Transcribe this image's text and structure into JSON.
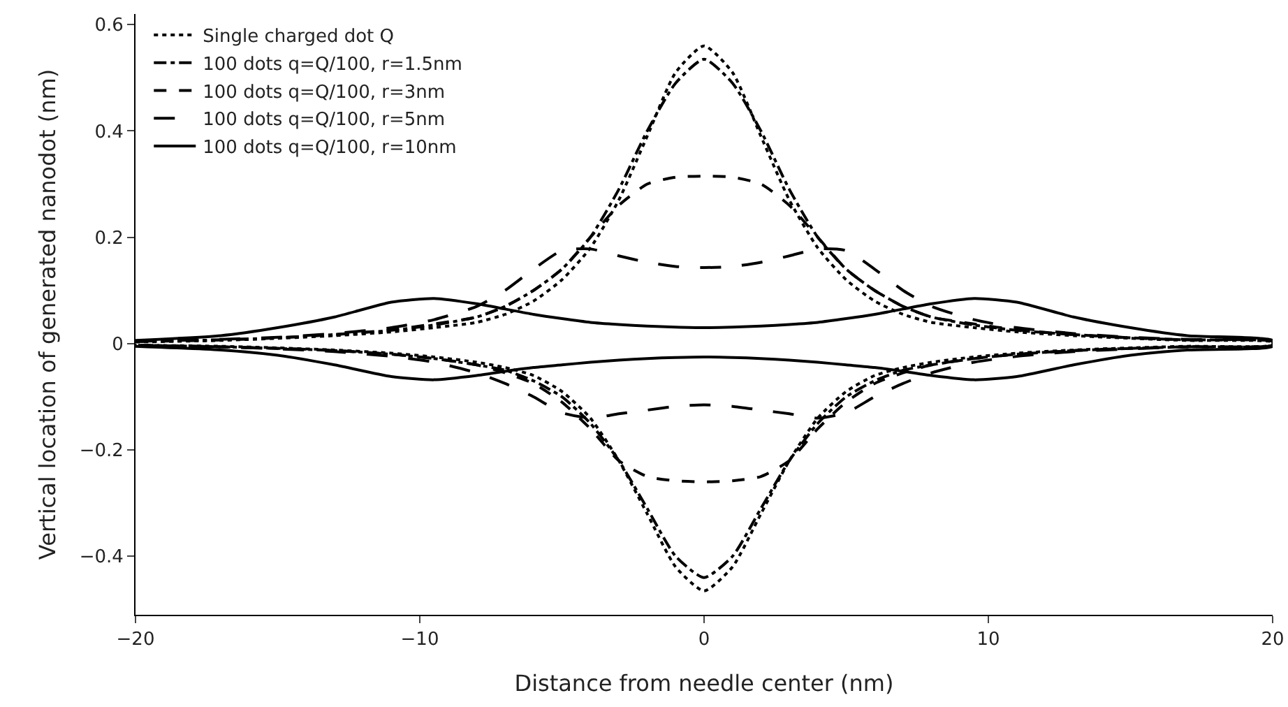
{
  "chart_data": {
    "type": "line",
    "xlabel": "Distance from needle center (nm)",
    "ylabel": "Vertical location of generated nanodot (nm)",
    "x": [
      -20,
      -17,
      -15,
      -13,
      -11,
      -9.5,
      -8,
      -7,
      -6,
      -5,
      -4,
      -3,
      -2,
      -1,
      0,
      1,
      2,
      3,
      4,
      5,
      6,
      7,
      8,
      9.5,
      11,
      13,
      15,
      17,
      20,
      20,
      17,
      15,
      13,
      11,
      9.5,
      8,
      7,
      6,
      5,
      4,
      3,
      2,
      1,
      0,
      -1,
      -2,
      -3,
      -4,
      -5,
      -6,
      -7,
      -8,
      -9.5,
      -11,
      -13,
      -15,
      -17,
      -20
    ],
    "series": [
      {
        "name": "Single charged dot Q",
        "color": "#000000",
        "line_style": "dotted",
        "values": [
          0.003,
          0.006,
          0.01,
          0.015,
          0.022,
          0.03,
          0.04,
          0.055,
          0.08,
          0.12,
          0.18,
          0.27,
          0.39,
          0.51,
          0.56,
          0.51,
          0.39,
          0.27,
          0.18,
          0.12,
          0.08,
          0.055,
          0.04,
          0.03,
          0.022,
          0.015,
          0.01,
          0.006,
          0.003,
          -0.003,
          -0.005,
          -0.008,
          -0.012,
          -0.018,
          -0.025,
          -0.035,
          -0.045,
          -0.06,
          -0.09,
          -0.14,
          -0.22,
          -0.32,
          -0.42,
          -0.465,
          -0.42,
          -0.32,
          -0.22,
          -0.14,
          -0.09,
          -0.06,
          -0.045,
          -0.035,
          -0.025,
          -0.018,
          -0.012,
          -0.008,
          -0.005,
          -0.003
        ]
      },
      {
        "name": "100 dots q=Q/100, r=1.5nm",
        "color": "#000000",
        "line_style": "dashdot",
        "values": [
          0.004,
          0.007,
          0.011,
          0.017,
          0.025,
          0.035,
          0.05,
          0.07,
          0.1,
          0.14,
          0.2,
          0.29,
          0.4,
          0.49,
          0.535,
          0.49,
          0.4,
          0.29,
          0.2,
          0.14,
          0.1,
          0.07,
          0.05,
          0.035,
          0.025,
          0.017,
          0.011,
          0.007,
          0.004,
          -0.003,
          -0.006,
          -0.009,
          -0.013,
          -0.02,
          -0.028,
          -0.04,
          -0.05,
          -0.07,
          -0.1,
          -0.15,
          -0.22,
          -0.31,
          -0.4,
          -0.44,
          -0.4,
          -0.31,
          -0.22,
          -0.15,
          -0.1,
          -0.07,
          -0.05,
          -0.04,
          -0.028,
          -0.02,
          -0.013,
          -0.009,
          -0.006,
          -0.003
        ]
      },
      {
        "name": "100 dots q=Q/100, r=3nm",
        "color": "#000000",
        "line_style": "dashed",
        "values": [
          0.004,
          0.007,
          0.011,
          0.017,
          0.026,
          0.037,
          0.05,
          0.07,
          0.1,
          0.14,
          0.2,
          0.26,
          0.3,
          0.313,
          0.315,
          0.313,
          0.3,
          0.26,
          0.2,
          0.14,
          0.1,
          0.07,
          0.05,
          0.037,
          0.026,
          0.017,
          0.011,
          0.007,
          0.004,
          -0.003,
          -0.006,
          -0.009,
          -0.013,
          -0.02,
          -0.028,
          -0.04,
          -0.055,
          -0.075,
          -0.11,
          -0.16,
          -0.22,
          -0.25,
          -0.258,
          -0.26,
          -0.258,
          -0.25,
          -0.22,
          -0.16,
          -0.11,
          -0.075,
          -0.055,
          -0.04,
          -0.028,
          -0.02,
          -0.013,
          -0.009,
          -0.006,
          -0.003
        ]
      },
      {
        "name": "100 dots q=Q/100, r=5nm",
        "color": "#000000",
        "line_style": "longdash",
        "values": [
          0.004,
          0.008,
          0.012,
          0.019,
          0.03,
          0.045,
          0.07,
          0.1,
          0.14,
          0.175,
          0.178,
          0.165,
          0.153,
          0.145,
          0.143,
          0.145,
          0.153,
          0.165,
          0.178,
          0.175,
          0.14,
          0.1,
          0.07,
          0.045,
          0.03,
          0.019,
          0.012,
          0.008,
          0.004,
          -0.003,
          -0.006,
          -0.01,
          -0.015,
          -0.024,
          -0.035,
          -0.055,
          -0.075,
          -0.1,
          -0.13,
          -0.14,
          -0.132,
          -0.125,
          -0.118,
          -0.115,
          -0.118,
          -0.125,
          -0.132,
          -0.14,
          -0.13,
          -0.1,
          -0.075,
          -0.055,
          -0.035,
          -0.024,
          -0.015,
          -0.01,
          -0.006,
          -0.003
        ]
      },
      {
        "name": "100 dots q=Q/100, r=10nm",
        "color": "#000000",
        "line_style": "solid",
        "values": [
          0.006,
          0.015,
          0.03,
          0.05,
          0.078,
          0.085,
          0.075,
          0.065,
          0.055,
          0.047,
          0.04,
          0.036,
          0.033,
          0.031,
          0.03,
          0.031,
          0.033,
          0.036,
          0.04,
          0.047,
          0.055,
          0.065,
          0.075,
          0.085,
          0.078,
          0.05,
          0.03,
          0.015,
          0.006,
          -0.005,
          -0.012,
          -0.022,
          -0.04,
          -0.062,
          -0.068,
          -0.06,
          -0.052,
          -0.045,
          -0.04,
          -0.035,
          -0.031,
          -0.028,
          -0.026,
          -0.025,
          -0.026,
          -0.028,
          -0.031,
          -0.035,
          -0.04,
          -0.045,
          -0.052,
          -0.06,
          -0.068,
          -0.062,
          -0.04,
          -0.022,
          -0.012,
          -0.005
        ]
      }
    ],
    "xlim": [
      -20,
      20
    ],
    "xticks": [
      {
        "value": -20,
        "label": "−20"
      },
      {
        "value": -10,
        "label": "−10"
      },
      0,
      10,
      20
    ],
    "ylim": [
      -0.51,
      0.62
    ],
    "yticks": [
      {
        "value": -0.4,
        "label": "−0.4"
      },
      {
        "value": -0.2,
        "label": "−0.2"
      },
      0,
      0.2,
      0.4,
      0.6
    ],
    "grid": false,
    "legend": "top left",
    "marker": "none"
  }
}
